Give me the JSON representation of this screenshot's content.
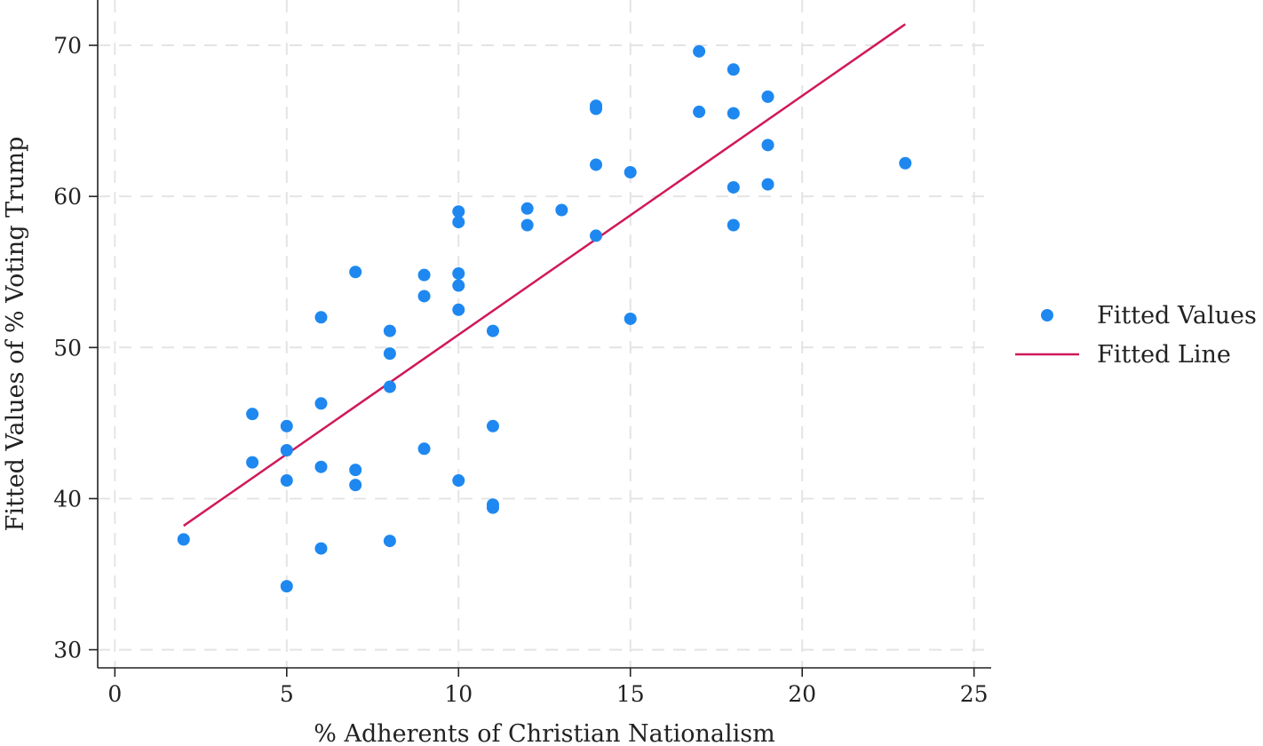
{
  "chart_data": {
    "type": "scatter",
    "title": "",
    "xlabel": "% Adherents of Christian Nationalism",
    "ylabel": "Fitted Values of % Voting Trump",
    "xlim": [
      -0.5,
      25.5
    ],
    "ylim": [
      28.8,
      73
    ],
    "x_ticks": [
      0,
      5,
      10,
      15,
      20,
      25
    ],
    "y_ticks": [
      30,
      40,
      50,
      60,
      70
    ],
    "grid": true,
    "legend_position": "right",
    "colors": {
      "points": "#1e88f0",
      "line": "#d0185a"
    },
    "series": [
      {
        "name": "Fitted Values",
        "kind": "scatter",
        "points": [
          [
            2,
            37.3
          ],
          [
            4,
            45.6
          ],
          [
            4,
            42.4
          ],
          [
            5,
            44.8
          ],
          [
            5,
            43.2
          ],
          [
            5,
            41.2
          ],
          [
            5,
            34.2
          ],
          [
            6,
            52.0
          ],
          [
            6,
            46.3
          ],
          [
            6,
            42.1
          ],
          [
            6,
            36.7
          ],
          [
            7,
            55.0
          ],
          [
            7,
            41.9
          ],
          [
            7,
            40.9
          ],
          [
            8,
            51.1
          ],
          [
            8,
            49.6
          ],
          [
            8,
            47.4
          ],
          [
            8,
            37.2
          ],
          [
            9,
            54.8
          ],
          [
            9,
            53.4
          ],
          [
            9,
            43.3
          ],
          [
            10,
            59.0
          ],
          [
            10,
            58.3
          ],
          [
            10,
            54.9
          ],
          [
            10,
            54.1
          ],
          [
            10,
            52.5
          ],
          [
            10,
            41.2
          ],
          [
            11,
            51.1
          ],
          [
            11,
            44.8
          ],
          [
            11,
            39.6
          ],
          [
            11,
            39.4
          ],
          [
            12,
            59.2
          ],
          [
            12,
            58.1
          ],
          [
            13,
            59.1
          ],
          [
            14,
            66.0
          ],
          [
            14,
            65.8
          ],
          [
            14,
            62.1
          ],
          [
            14,
            57.4
          ],
          [
            15,
            61.6
          ],
          [
            15,
            51.9
          ],
          [
            17,
            69.6
          ],
          [
            17,
            65.6
          ],
          [
            18,
            68.4
          ],
          [
            18,
            65.5
          ],
          [
            18,
            60.6
          ],
          [
            18,
            58.1
          ],
          [
            19,
            66.6
          ],
          [
            19,
            63.4
          ],
          [
            19,
            60.8
          ],
          [
            23,
            62.2
          ]
        ]
      },
      {
        "name": "Fitted Line",
        "kind": "line",
        "x": [
          2,
          23
        ],
        "y": [
          38.2,
          71.4
        ]
      }
    ]
  }
}
